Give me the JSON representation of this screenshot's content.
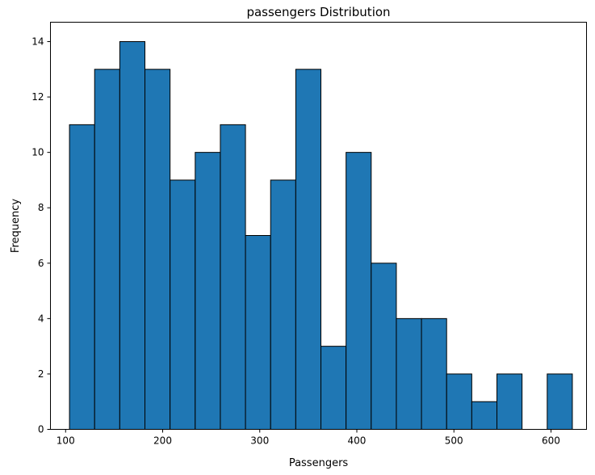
{
  "chart_data": {
    "type": "bar",
    "title": "passengers Distribution",
    "xlabel": "Passengers",
    "ylabel": "Frequency",
    "bar_color": "#1f77b4",
    "edge_color": "#000000",
    "xlim": [
      84.4,
      636.6
    ],
    "ylim": [
      0,
      14.7
    ],
    "xticks": [
      100,
      200,
      300,
      400,
      500,
      600
    ],
    "yticks": [
      0,
      2,
      4,
      6,
      8,
      10,
      12,
      14
    ],
    "bins": [
      {
        "start": 104.0,
        "end": 129.9,
        "count": 11
      },
      {
        "start": 129.9,
        "end": 155.8,
        "count": 13
      },
      {
        "start": 155.8,
        "end": 181.7,
        "count": 14
      },
      {
        "start": 181.7,
        "end": 207.6,
        "count": 13
      },
      {
        "start": 207.6,
        "end": 233.5,
        "count": 9
      },
      {
        "start": 233.5,
        "end": 259.4,
        "count": 10
      },
      {
        "start": 259.4,
        "end": 285.3,
        "count": 11
      },
      {
        "start": 285.3,
        "end": 311.2,
        "count": 7
      },
      {
        "start": 311.2,
        "end": 337.1,
        "count": 9
      },
      {
        "start": 337.1,
        "end": 363.0,
        "count": 13
      },
      {
        "start": 363.0,
        "end": 388.9,
        "count": 3
      },
      {
        "start": 388.9,
        "end": 414.8,
        "count": 10
      },
      {
        "start": 414.8,
        "end": 440.7,
        "count": 6
      },
      {
        "start": 440.7,
        "end": 466.6,
        "count": 4
      },
      {
        "start": 466.6,
        "end": 492.5,
        "count": 4
      },
      {
        "start": 492.5,
        "end": 518.4,
        "count": 2
      },
      {
        "start": 518.4,
        "end": 544.3,
        "count": 1
      },
      {
        "start": 544.3,
        "end": 570.2,
        "count": 2
      },
      {
        "start": 570.2,
        "end": 596.1,
        "count": 0
      },
      {
        "start": 596.1,
        "end": 622.0,
        "count": 2
      }
    ],
    "grid": false,
    "legend": "none"
  }
}
